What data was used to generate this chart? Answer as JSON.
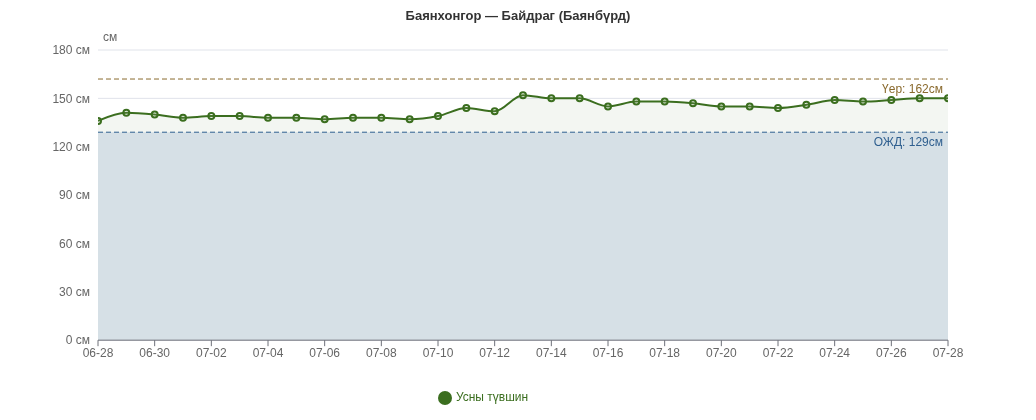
{
  "chart_data": {
    "type": "area",
    "title": "Баянхонгор — Байдраг (Баянбүрд)",
    "ylabel": "см",
    "x": [
      "--06-28",
      "--06-29",
      "--06-30",
      "--07-01",
      "--07-02",
      "--07-03",
      "--07-04",
      "--07-05",
      "--07-06",
      "--07-07",
      "--07-08",
      "--07-09",
      "--07-10",
      "--07-11",
      "--07-12",
      "--07-13",
      "--07-14",
      "--07-15",
      "--07-16",
      "--07-17",
      "--07-18",
      "--07-19",
      "--07-20",
      "--07-21",
      "--07-22",
      "--07-23",
      "--07-24",
      "--07-25",
      "--07-26",
      "--07-27",
      "--07-28"
    ],
    "series": [
      {
        "name": "Усны түвшин",
        "color": "#3b6e1f",
        "values": [
          136,
          141,
          140,
          138,
          139,
          139,
          138,
          138,
          137,
          138,
          138,
          137,
          139,
          144,
          142,
          152,
          150,
          150,
          145,
          148,
          148,
          147,
          145,
          145,
          144,
          146,
          149,
          148,
          149,
          150,
          150
        ]
      }
    ],
    "xlim": [
      "--06-28",
      "--07-28"
    ],
    "xticks": [
      {
        "value": "--06-28",
        "label": "06-28"
      },
      {
        "value": "--06-30",
        "label": "06-30"
      },
      {
        "value": "--07-02",
        "label": "07-02"
      },
      {
        "value": "--07-04",
        "label": "07-04"
      },
      {
        "value": "--07-06",
        "label": "07-06"
      },
      {
        "value": "--07-08",
        "label": "07-08"
      },
      {
        "value": "--07-10",
        "label": "07-10"
      },
      {
        "value": "--07-12",
        "label": "07-12"
      },
      {
        "value": "--07-14",
        "label": "07-14"
      },
      {
        "value": "--07-16",
        "label": "07-16"
      },
      {
        "value": "--07-18",
        "label": "07-18"
      },
      {
        "value": "--07-20",
        "label": "07-20"
      },
      {
        "value": "--07-22",
        "label": "07-22"
      },
      {
        "value": "--07-24",
        "label": "07-24"
      },
      {
        "value": "--07-26",
        "label": "07-26"
      },
      {
        "value": "--07-28",
        "label": "07-28"
      }
    ],
    "ylim": [
      0,
      180
    ],
    "yticks": [
      {
        "value": 0,
        "label": "0 см"
      },
      {
        "value": 30,
        "label": "30 см"
      },
      {
        "value": 60,
        "label": "60 см"
      },
      {
        "value": 90,
        "label": "90 см"
      },
      {
        "value": 120,
        "label": "120 см"
      },
      {
        "value": 150,
        "label": "150 см"
      },
      {
        "value": 180,
        "label": "180 см"
      }
    ],
    "ref_lines": [
      {
        "axis": "y",
        "value": 162,
        "label": "Үер: 162см",
        "color": "#8a6a2e",
        "line_style": "dashed"
      },
      {
        "axis": "y",
        "value": 129,
        "label": "ОЖД: 129см",
        "color": "#2f5f8f",
        "line_style": "dashed"
      }
    ],
    "bands": [
      {
        "axis": "y",
        "from": 0,
        "to": 129,
        "color": "#e1e8f3"
      }
    ],
    "grid": "y",
    "legend": "bottom",
    "marker": "circle",
    "line_style": "solid"
  }
}
